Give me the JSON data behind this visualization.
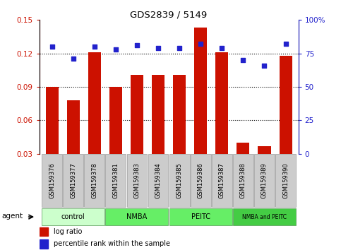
{
  "title": "GDS2839 / 5149",
  "samples": [
    "GSM159376",
    "GSM159377",
    "GSM159378",
    "GSM159381",
    "GSM159383",
    "GSM159384",
    "GSM159385",
    "GSM159386",
    "GSM159387",
    "GSM159388",
    "GSM159389",
    "GSM159390"
  ],
  "log_ratio": [
    0.09,
    0.078,
    0.121,
    0.09,
    0.101,
    0.101,
    0.101,
    0.143,
    0.121,
    0.04,
    0.037,
    0.118
  ],
  "percentile_rank": [
    80,
    71,
    80,
    78,
    81,
    79,
    79,
    82,
    79,
    70,
    66,
    82
  ],
  "groups": [
    {
      "label": "control",
      "start": 0,
      "end": 3,
      "color": "#ccffcc"
    },
    {
      "label": "NMBA",
      "start": 3,
      "end": 6,
      "color": "#66ee66"
    },
    {
      "label": "PEITC",
      "start": 6,
      "end": 9,
      "color": "#66ee66"
    },
    {
      "label": "NMBA and PEITC",
      "start": 9,
      "end": 12,
      "color": "#44cc44"
    }
  ],
  "bar_color": "#cc1100",
  "dot_color": "#2222cc",
  "ylim_left": [
    0.03,
    0.15
  ],
  "ylim_right": [
    0,
    100
  ],
  "yticks_left": [
    0.03,
    0.06,
    0.09,
    0.12,
    0.15
  ],
  "yticks_right": [
    0,
    25,
    50,
    75,
    100
  ],
  "grid_values": [
    0.06,
    0.09,
    0.12
  ],
  "bar_width": 0.6,
  "sample_box_color": "#cccccc",
  "sample_box_edge": "#999999"
}
